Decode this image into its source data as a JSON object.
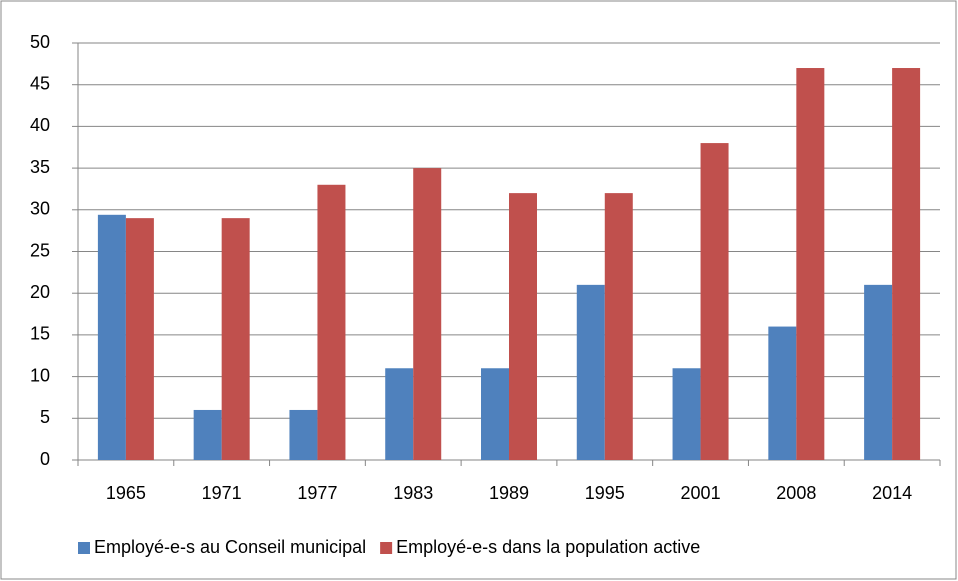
{
  "chart_data": {
    "type": "bar",
    "categories": [
      "1965",
      "1971",
      "1977",
      "1983",
      "1989",
      "1995",
      "2001",
      "2008",
      "2014"
    ],
    "series": [
      {
        "name": "Employé-e-s au Conseil municipal",
        "color": "#4f81bd",
        "values": [
          29.4,
          6,
          6,
          11,
          11,
          21,
          11,
          16,
          21
        ]
      },
      {
        "name": "Employé-e-s dans la population active",
        "color": "#c0504d",
        "values": [
          29,
          29,
          33,
          35,
          32,
          32,
          38,
          47,
          47
        ]
      }
    ],
    "ylim": [
      0,
      50
    ],
    "yticks": [
      0,
      5,
      10,
      15,
      20,
      25,
      30,
      35,
      40,
      45,
      50
    ],
    "grid": true,
    "legend": "bottom"
  }
}
